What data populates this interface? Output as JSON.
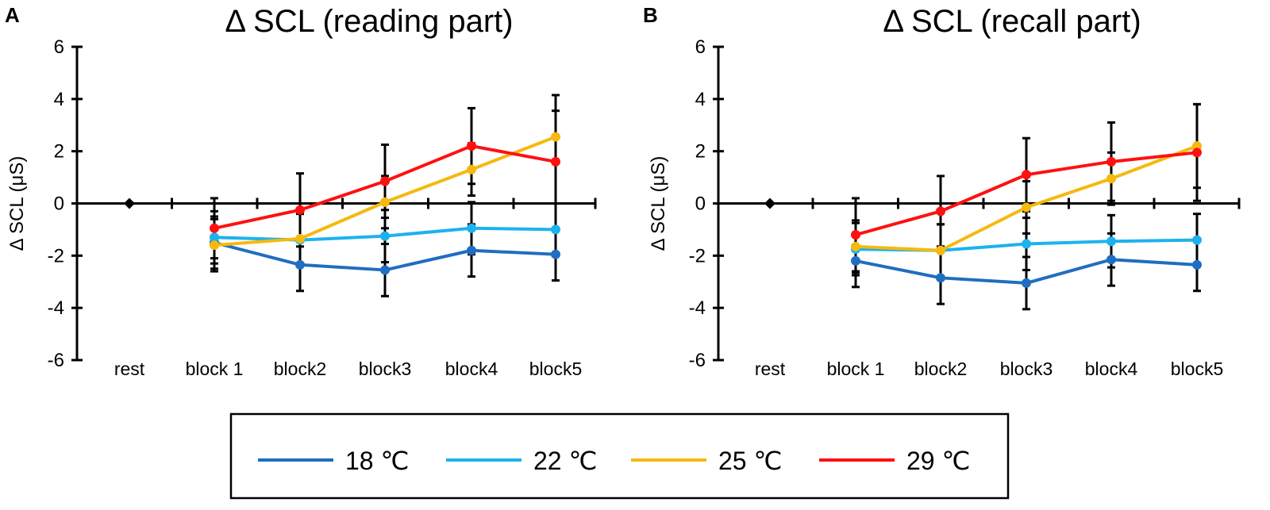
{
  "chart_data": [
    {
      "panel": "A",
      "type": "line",
      "title": "Δ SCL (reading part)",
      "xlabel": "",
      "ylabel": "Δ SCL (μS)",
      "ylim": [
        -6,
        6
      ],
      "yticks": [
        -6,
        -4,
        -2,
        0,
        2,
        4,
        6
      ],
      "categories": [
        "rest",
        "block 1",
        "block2",
        "block3",
        "block4",
        "block5"
      ],
      "rest_value": 0,
      "series": [
        {
          "name": "18 ℃",
          "color": "#1F6EC1",
          "values": [
            null,
            -1.5,
            -2.35,
            -2.55,
            -1.8,
            -1.95
          ],
          "error": [
            null,
            1.0,
            1.0,
            1.0,
            1.0,
            1.0
          ]
        },
        {
          "name": "22 ℃",
          "color": "#1DB2EE",
          "values": [
            null,
            -1.3,
            -1.4,
            -1.25,
            -0.95,
            -1.0
          ],
          "error": [
            null,
            1.0,
            1.0,
            1.0,
            1.0,
            1.0
          ]
        },
        {
          "name": "25 ℃",
          "color": "#F5B90F",
          "values": [
            null,
            -1.6,
            -1.35,
            0.05,
            1.3,
            2.55
          ],
          "error": [
            null,
            1.0,
            1.0,
            1.0,
            1.0,
            1.0
          ]
        },
        {
          "name": "29 ℃",
          "color": "#FF1010",
          "values": [
            null,
            -0.95,
            -0.25,
            0.85,
            2.2,
            1.6
          ],
          "error": [
            null,
            1.15,
            1.4,
            1.4,
            1.45,
            2.55
          ]
        }
      ]
    },
    {
      "panel": "B",
      "type": "line",
      "title": "Δ SCL (recall part)",
      "xlabel": "",
      "ylabel": "Δ SCL (μS)",
      "ylim": [
        -6,
        6
      ],
      "yticks": [
        -6,
        -4,
        -2,
        0,
        2,
        4,
        6
      ],
      "categories": [
        "rest",
        "block 1",
        "block2",
        "block3",
        "block4",
        "block5"
      ],
      "rest_value": 0,
      "series": [
        {
          "name": "18 ℃",
          "color": "#1F6EC1",
          "values": [
            null,
            -2.2,
            -2.85,
            -3.05,
            -2.15,
            -2.35
          ],
          "error": [
            null,
            1.0,
            1.0,
            1.0,
            1.0,
            1.0
          ]
        },
        {
          "name": "22 ℃",
          "color": "#1DB2EE",
          "values": [
            null,
            -1.75,
            -1.8,
            -1.55,
            -1.45,
            -1.4
          ],
          "error": [
            null,
            1.0,
            1.0,
            1.0,
            1.0,
            1.0
          ]
        },
        {
          "name": "25 ℃",
          "color": "#F5B90F",
          "values": [
            null,
            -1.65,
            -1.8,
            -0.15,
            0.95,
            2.2
          ],
          "error": [
            null,
            1.0,
            1.0,
            1.0,
            1.0,
            1.6
          ]
        },
        {
          "name": "29 ℃",
          "color": "#FF1010",
          "values": [
            null,
            -1.2,
            -0.3,
            1.1,
            1.6,
            1.95
          ],
          "error": [
            null,
            1.4,
            1.35,
            1.4,
            1.5,
            1.85
          ]
        }
      ]
    }
  ],
  "legend": {
    "items": [
      {
        "label": "18 ℃",
        "color": "#1F6EC1"
      },
      {
        "label": "22 ℃",
        "color": "#1DB2EE"
      },
      {
        "label": "25 ℃",
        "color": "#F5B90F"
      },
      {
        "label": "29 ℃",
        "color": "#FF1010"
      }
    ]
  }
}
